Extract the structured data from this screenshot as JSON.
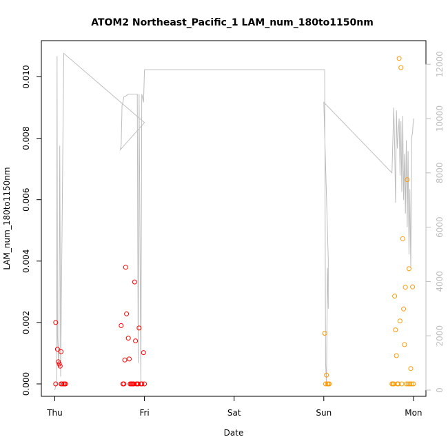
{
  "chart_data": {
    "type": "scatter",
    "title": "ATOM2 Northeast_Pacific_1 LAM_num_180to1150nm",
    "xlabel": "Date",
    "ylabel": "LAM_num_180to1150nm",
    "x_ticks": [
      {
        "label": "Thu",
        "day": 0
      },
      {
        "label": "Fri",
        "day": 1
      },
      {
        "label": "Sat",
        "day": 2
      },
      {
        "label": "Sun",
        "day": 3
      },
      {
        "label": "Mon",
        "day": 4
      }
    ],
    "ylim": [
      0,
      0.011
    ],
    "y_ticks": [
      "0.000",
      "0.002",
      "0.004",
      "0.006",
      "0.008",
      "0.010"
    ],
    "y2lim": [
      0,
      13000
    ],
    "y2_ticks": [
      "0",
      "2000",
      "4000",
      "6000",
      "8000",
      "10000",
      "12000"
    ],
    "colors": {
      "series_early": "#ff0000",
      "series_late": "#ff9900",
      "altitude_line": "#bdbdbd"
    },
    "series": [
      {
        "color": "#ff0000",
        "x": [
          0.01,
          0.01,
          0.03,
          0.04,
          0.05,
          0.06,
          0.07,
          0.07,
          0.08,
          0.1,
          0.11,
          0.12,
          0.74,
          0.76,
          0.77,
          0.78,
          0.79,
          0.8,
          0.82,
          0.83,
          0.84,
          0.85,
          0.86,
          0.87,
          0.88,
          0.89,
          0.9,
          0.91,
          0.92,
          0.93,
          0.94,
          0.96,
          0.97,
          0.99,
          1.0
        ],
        "y": [
          0.002,
          0.0,
          0.00113,
          0.00072,
          0.00065,
          0.00058,
          0.0,
          0.00105,
          0.0,
          0.0,
          0.0,
          0.0,
          0.0019,
          0.0,
          0.0,
          0.00078,
          0.0038,
          0.00228,
          0.00149,
          0.00081,
          0.0,
          0.0,
          0.0,
          0.0,
          0.0,
          0.00332,
          0.0014,
          0.0,
          0.0,
          0.0,
          0.00182,
          0.0,
          0.0,
          0.00102,
          0.0
        ]
      },
      {
        "color": "#ff9900",
        "x": [
          3.01,
          3.02,
          3.03,
          3.04,
          3.05,
          3.06,
          3.76,
          3.77,
          3.78,
          3.79,
          3.8,
          3.81,
          3.82,
          3.83,
          3.84,
          3.85,
          3.86,
          3.87,
          3.88,
          3.89,
          3.9,
          3.91,
          3.92,
          3.93,
          3.94,
          3.95,
          3.96,
          3.97,
          3.98,
          3.99,
          4.0
        ],
        "y": [
          0.00165,
          0.0,
          0.00029,
          0.0,
          0.0,
          0.0,
          0.0,
          0.0,
          0.0,
          0.00286,
          0.00176,
          0.00092,
          0.0,
          0.0,
          0.0106,
          0.00205,
          0.0103,
          0.0,
          0.00473,
          0.00244,
          0.00128,
          0.00315,
          0.0,
          0.00665,
          0.0,
          0.00375,
          0.0,
          0.0005,
          0.0,
          0.00316,
          0.0
        ]
      }
    ],
    "altitude": {
      "x": [
        0.0,
        0.02,
        0.025,
        0.03,
        0.045,
        0.055,
        0.065,
        0.1,
        1.0,
        0.73,
        0.74,
        0.75,
        0.76,
        0.77,
        0.78,
        0.82,
        0.83,
        0.84,
        0.86,
        0.88,
        0.9,
        0.92,
        0.93,
        0.94,
        0.96,
        0.97,
        0.99,
        1.0,
        1.0,
        3.01,
        3.02,
        3.03,
        3.04,
        3.05,
        3.05,
        3.0,
        3.76,
        3.78,
        3.79,
        3.8,
        3.81,
        3.82,
        3.84,
        3.85,
        3.86,
        3.87,
        3.88,
        3.89,
        3.9,
        3.91,
        3.92,
        3.93,
        3.94,
        3.95,
        3.96,
        3.97,
        3.98,
        3.99,
        4.0
      ],
      "y": [
        0,
        300,
        12300,
        2000,
        800,
        9000,
        500,
        12400,
        9850,
        8850,
        9000,
        10500,
        10600,
        10800,
        10800,
        10900,
        10900,
        10900,
        10900,
        10900,
        10900,
        10900,
        1000,
        10900,
        300,
        10900,
        10600,
        11800,
        11800,
        11800,
        1000,
        200,
        4500,
        3000,
        4800,
        10600,
        8000,
        10400,
        9000,
        6900,
        10300,
        8900,
        10000,
        7900,
        9900,
        7300,
        10100,
        7000,
        8700,
        6500,
        9200,
        6000,
        8800,
        5000,
        7400,
        4500,
        9300,
        9500,
        10000
      ]
    }
  }
}
